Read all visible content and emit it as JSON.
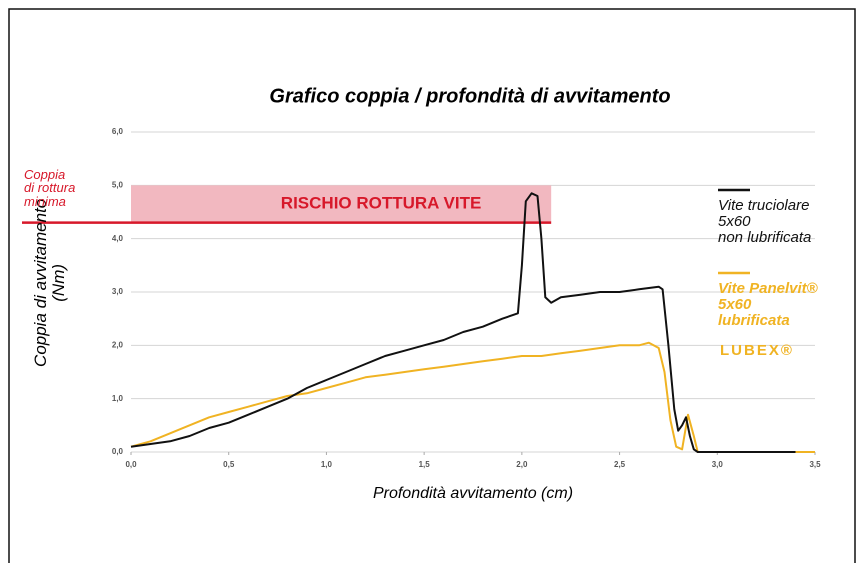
{
  "chart_data": {
    "type": "line",
    "title": "Grafico coppia / profondità di avvitamento",
    "x_label": "Profondità avvitamento (cm)",
    "y_label": "Coppia di avvitamento\n(Nm)",
    "xlim": [
      0,
      3.5
    ],
    "ylim": [
      0,
      6
    ],
    "xticks": [
      {
        "value": 0,
        "label": "0,0"
      },
      {
        "value": 0.5,
        "label": "0,5"
      },
      {
        "value": 1,
        "label": "1,0"
      },
      {
        "value": 1.5,
        "label": "1,5"
      },
      {
        "value": 2,
        "label": "2,0"
      },
      {
        "value": 2.5,
        "label": "2,5"
      },
      {
        "value": 3,
        "label": "3,0"
      },
      {
        "value": 3.5,
        "label": "3,5"
      }
    ],
    "yticks": [
      {
        "value": 0,
        "label": "0,0"
      },
      {
        "value": 1,
        "label": "1,0"
      },
      {
        "value": 2,
        "label": "2,0"
      },
      {
        "value": 3,
        "label": "3,0"
      },
      {
        "value": 4,
        "label": "4,0"
      },
      {
        "value": 5,
        "label": "5,0"
      },
      {
        "value": 6,
        "label": "6,0"
      }
    ],
    "grid": true,
    "threshold": {
      "value": 4.3,
      "label": "Coppia\ndi rottura\nminima",
      "color": "#d7182a"
    },
    "risk_band": {
      "ylim": [
        4.3,
        5.0
      ],
      "xlim": [
        0,
        2.15
      ],
      "label": "RISCHIO ROTTURA VITE",
      "color": "#f2b8c0"
    },
    "logo": "LUBEX®",
    "series": [
      {
        "name": "Vite truciolare\n5x60\nnon lubrificata",
        "color": "#111111",
        "x": [
          0,
          0.1,
          0.2,
          0.3,
          0.4,
          0.5,
          0.6,
          0.7,
          0.8,
          0.9,
          1.0,
          1.1,
          1.2,
          1.3,
          1.4,
          1.5,
          1.6,
          1.7,
          1.8,
          1.9,
          1.98,
          2.0,
          2.02,
          2.05,
          2.08,
          2.1,
          2.12,
          2.15,
          2.2,
          2.3,
          2.4,
          2.5,
          2.6,
          2.7,
          2.72,
          2.75,
          2.78,
          2.8,
          2.82,
          2.84,
          2.86,
          2.88,
          2.9,
          3.0,
          3.4
        ],
        "values": [
          0.1,
          0.15,
          0.2,
          0.3,
          0.45,
          0.55,
          0.7,
          0.85,
          1.0,
          1.2,
          1.35,
          1.5,
          1.65,
          1.8,
          1.9,
          2.0,
          2.1,
          2.25,
          2.35,
          2.5,
          2.6,
          3.5,
          4.7,
          4.85,
          4.8,
          4.0,
          2.9,
          2.8,
          2.9,
          2.95,
          3.0,
          3.0,
          3.05,
          3.1,
          3.05,
          2.0,
          0.8,
          0.4,
          0.5,
          0.65,
          0.3,
          0.05,
          0,
          0,
          0
        ]
      },
      {
        "name": "Vite Panelvit®\n5x60\nlubrificata",
        "color": "#f0b323",
        "x": [
          0,
          0.1,
          0.2,
          0.3,
          0.4,
          0.5,
          0.6,
          0.7,
          0.8,
          0.9,
          1.0,
          1.1,
          1.2,
          1.3,
          1.4,
          1.5,
          1.6,
          1.7,
          1.8,
          1.9,
          2.0,
          2.1,
          2.2,
          2.3,
          2.4,
          2.5,
          2.6,
          2.65,
          2.7,
          2.73,
          2.76,
          2.79,
          2.82,
          2.85,
          2.88,
          2.9,
          3.0,
          3.5
        ],
        "values": [
          0.1,
          0.2,
          0.35,
          0.5,
          0.65,
          0.75,
          0.85,
          0.95,
          1.05,
          1.1,
          1.2,
          1.3,
          1.4,
          1.45,
          1.5,
          1.55,
          1.6,
          1.65,
          1.7,
          1.75,
          1.8,
          1.8,
          1.85,
          1.9,
          1.95,
          2.0,
          2.0,
          2.05,
          1.95,
          1.5,
          0.6,
          0.1,
          0.05,
          0.7,
          0.3,
          0,
          0,
          0
        ]
      }
    ]
  }
}
